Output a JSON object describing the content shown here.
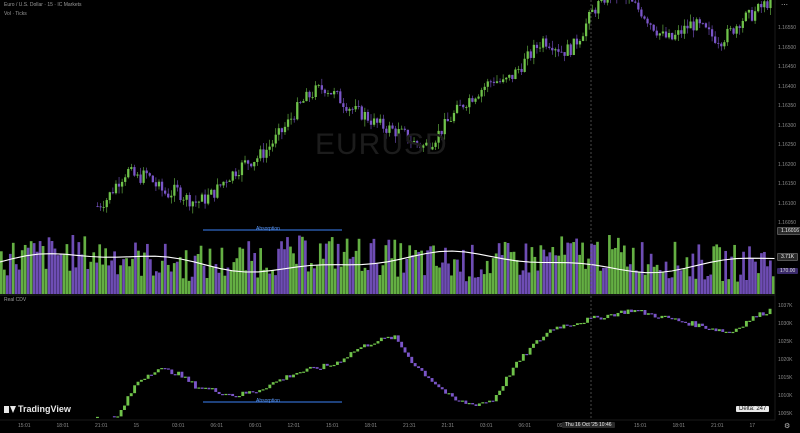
{
  "header": {
    "symbol_line": "Euro / U.S. Dollar · 15 · IC Markets",
    "volume_label": "Vol · Ticks",
    "cdv_label": "Real CDV"
  },
  "watermark": "EURUSD",
  "price_axis": {
    "ticks": [
      "1.16550",
      "1.16500",
      "1.16450",
      "1.16400",
      "1.16350",
      "1.16300",
      "1.16250",
      "1.16200",
      "1.16150",
      "1.16100",
      "1.16050"
    ],
    "current_price_tag": "1.16016",
    "volume_tag": "3.71K",
    "volume_tag2": "170.00"
  },
  "cdv_axis": {
    "ticks": [
      "1037K",
      "1030K",
      "1025K",
      "1020K",
      "1015K",
      "1010K",
      "1005K"
    ],
    "delta_label": "Delta: 247"
  },
  "time_axis": {
    "ticks": [
      "15:01",
      "18:01",
      "21:01",
      "15",
      "03:01",
      "06:01",
      "09:01",
      "12:01",
      "15:01",
      "18:01",
      "21:31",
      "21:31",
      "03:01",
      "06:01",
      "09:01",
      "12:01",
      "15:01",
      "18:01",
      "21:01",
      "17"
    ],
    "crosshair_label": "Thu 16 Oct '25   10:46"
  },
  "annotations": {
    "absorption_top": "Absorption",
    "absorption_bottom": "Absorption"
  },
  "brand": "TradingView",
  "colors": {
    "up": "#6fc24a",
    "down": "#7a55c8",
    "ma": "#ffffff",
    "annotation": "#3b82f6",
    "tag_bg": "#2a2a2a"
  },
  "chart_data": {
    "type": "candlestick",
    "title": "EURUSD 15m",
    "ylim": [
      1.16,
      1.1658
    ],
    "candles_close": [
      1.1606,
      1.1608,
      1.1612,
      1.1615,
      1.1613,
      1.1614,
      1.1611,
      1.1609,
      1.161,
      1.1608,
      1.1607,
      1.1608,
      1.161,
      1.1613,
      1.1615,
      1.1617,
      1.1618,
      1.162,
      1.1623,
      1.1626,
      1.163,
      1.1633,
      1.1635,
      1.1636,
      1.1634,
      1.1632,
      1.163,
      1.1629,
      1.1627,
      1.1626,
      1.1625,
      1.1624,
      1.1622,
      1.1621,
      1.1623,
      1.1626,
      1.1629,
      1.1632,
      1.1634,
      1.1636,
      1.1638,
      1.1637,
      1.1639,
      1.1642,
      1.1645,
      1.1648,
      1.1647,
      1.1645,
      1.1646,
      1.165,
      1.1655,
      1.1658,
      1.166,
      1.1659,
      1.1657,
      1.1655,
      1.1652,
      1.1649,
      1.1648,
      1.165,
      1.1652,
      1.1651,
      1.1649,
      1.1648,
      1.165,
      1.1653,
      1.1654,
      1.1656,
      1.1658
    ]
  }
}
